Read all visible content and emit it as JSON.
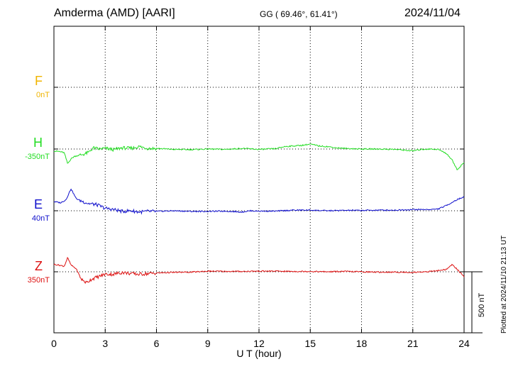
{
  "header": {
    "station": "Amderma (AMD)  [AARI]",
    "coords": "GG ( 69.46°,  61.41°)",
    "date": "2024/11/04"
  },
  "colors": {
    "F": "#f0b400",
    "H": "#22dd22",
    "E": "#1010cc",
    "Z": "#dd1111"
  },
  "chart_data": {
    "type": "line",
    "title": "Amderma (AMD)  [AARI]",
    "xlabel": "U T (hour)",
    "ylabel": "",
    "xlim": [
      0,
      24
    ],
    "x_ticks": [
      0,
      3,
      6,
      9,
      12,
      15,
      18,
      21,
      24
    ],
    "x_tick_labels": [
      "0",
      "3",
      "6",
      "9",
      "12",
      "15",
      "18",
      "21",
      "24"
    ],
    "grid": true,
    "scale_bar": "500 nT",
    "series": [
      {
        "name": "F",
        "baseline_label": "0nT",
        "points": []
      },
      {
        "name": "H",
        "baseline_label": "-350nT",
        "points": [
          [
            0,
            -16
          ],
          [
            0.3,
            -20
          ],
          [
            0.6,
            -30
          ],
          [
            0.8,
            -120
          ],
          [
            1.0,
            -80
          ],
          [
            1.2,
            -60
          ],
          [
            1.5,
            -50
          ],
          [
            1.8,
            -40
          ],
          [
            2.0,
            -30
          ],
          [
            2.3,
            10
          ],
          [
            2.6,
            0
          ],
          [
            3.0,
            5
          ],
          [
            3.5,
            -5
          ],
          [
            4.0,
            10
          ],
          [
            4.5,
            5
          ],
          [
            5.0,
            20
          ],
          [
            5.5,
            5
          ],
          [
            6.0,
            5
          ],
          [
            7.0,
            -3
          ],
          [
            8.0,
            -5
          ],
          [
            9.0,
            0
          ],
          [
            10.0,
            -3
          ],
          [
            11.0,
            5
          ],
          [
            12.0,
            -3
          ],
          [
            12.5,
            0
          ],
          [
            13.0,
            3
          ],
          [
            13.5,
            20
          ],
          [
            14.0,
            25
          ],
          [
            14.5,
            30
          ],
          [
            15.0,
            40
          ],
          [
            15.5,
            25
          ],
          [
            16.0,
            20
          ],
          [
            16.5,
            10
          ],
          [
            17.0,
            5
          ],
          [
            18.0,
            0
          ],
          [
            19.0,
            0
          ],
          [
            20.0,
            -3
          ],
          [
            21.0,
            -15
          ],
          [
            21.5,
            -3
          ],
          [
            22.0,
            0
          ],
          [
            22.5,
            -3
          ],
          [
            23.0,
            -40
          ],
          [
            23.3,
            -90
          ],
          [
            23.6,
            -170
          ],
          [
            24.0,
            -110
          ]
        ]
      },
      {
        "name": "E",
        "baseline_label": "40nT",
        "points": [
          [
            0,
            75
          ],
          [
            0.4,
            65
          ],
          [
            0.7,
            90
          ],
          [
            1.0,
            180
          ],
          [
            1.3,
            100
          ],
          [
            1.6,
            80
          ],
          [
            2.0,
            60
          ],
          [
            2.5,
            50
          ],
          [
            3.0,
            20
          ],
          [
            3.5,
            10
          ],
          [
            4.0,
            -5
          ],
          [
            4.5,
            0
          ],
          [
            5.0,
            -10
          ],
          [
            5.5,
            -5
          ],
          [
            6.0,
            -5
          ],
          [
            7.0,
            0
          ],
          [
            8.0,
            -5
          ],
          [
            9.0,
            -5
          ],
          [
            10.0,
            -3
          ],
          [
            11.0,
            -10
          ],
          [
            11.5,
            0
          ],
          [
            12.0,
            -3
          ],
          [
            13.0,
            -3
          ],
          [
            14.0,
            5
          ],
          [
            15.0,
            5
          ],
          [
            16.0,
            0
          ],
          [
            17.0,
            3
          ],
          [
            18.0,
            3
          ],
          [
            19.0,
            5
          ],
          [
            20.0,
            5
          ],
          [
            21.0,
            10
          ],
          [
            22.0,
            10
          ],
          [
            22.5,
            15
          ],
          [
            23.0,
            45
          ],
          [
            23.5,
            85
          ],
          [
            24.0,
            115
          ]
        ]
      },
      {
        "name": "Z",
        "baseline_label": "350nT",
        "points": [
          [
            0,
            60
          ],
          [
            0.3,
            55
          ],
          [
            0.6,
            45
          ],
          [
            0.8,
            115
          ],
          [
            1.0,
            55
          ],
          [
            1.3,
            25
          ],
          [
            1.6,
            -60
          ],
          [
            1.9,
            -90
          ],
          [
            2.2,
            -60
          ],
          [
            2.6,
            -40
          ],
          [
            3.0,
            -20
          ],
          [
            3.5,
            -20
          ],
          [
            4.0,
            -5
          ],
          [
            4.5,
            -15
          ],
          [
            5.0,
            -20
          ],
          [
            5.5,
            -15
          ],
          [
            6.0,
            -10
          ],
          [
            7.0,
            -5
          ],
          [
            8.0,
            -3
          ],
          [
            9.0,
            5
          ],
          [
            10.0,
            3
          ],
          [
            11.0,
            3
          ],
          [
            12.0,
            5
          ],
          [
            13.0,
            5
          ],
          [
            14.0,
            3
          ],
          [
            15.0,
            3
          ],
          [
            16.0,
            0
          ],
          [
            17.0,
            3
          ],
          [
            18.0,
            0
          ],
          [
            19.0,
            -3
          ],
          [
            20.0,
            -3
          ],
          [
            21.0,
            -5
          ],
          [
            22.0,
            3
          ],
          [
            22.5,
            10
          ],
          [
            23.0,
            20
          ],
          [
            23.3,
            60
          ],
          [
            23.6,
            20
          ],
          [
            24.0,
            -40
          ]
        ]
      }
    ]
  },
  "footer": {
    "plotted": "Plotted at 2024/11/10 21:13 UT"
  }
}
